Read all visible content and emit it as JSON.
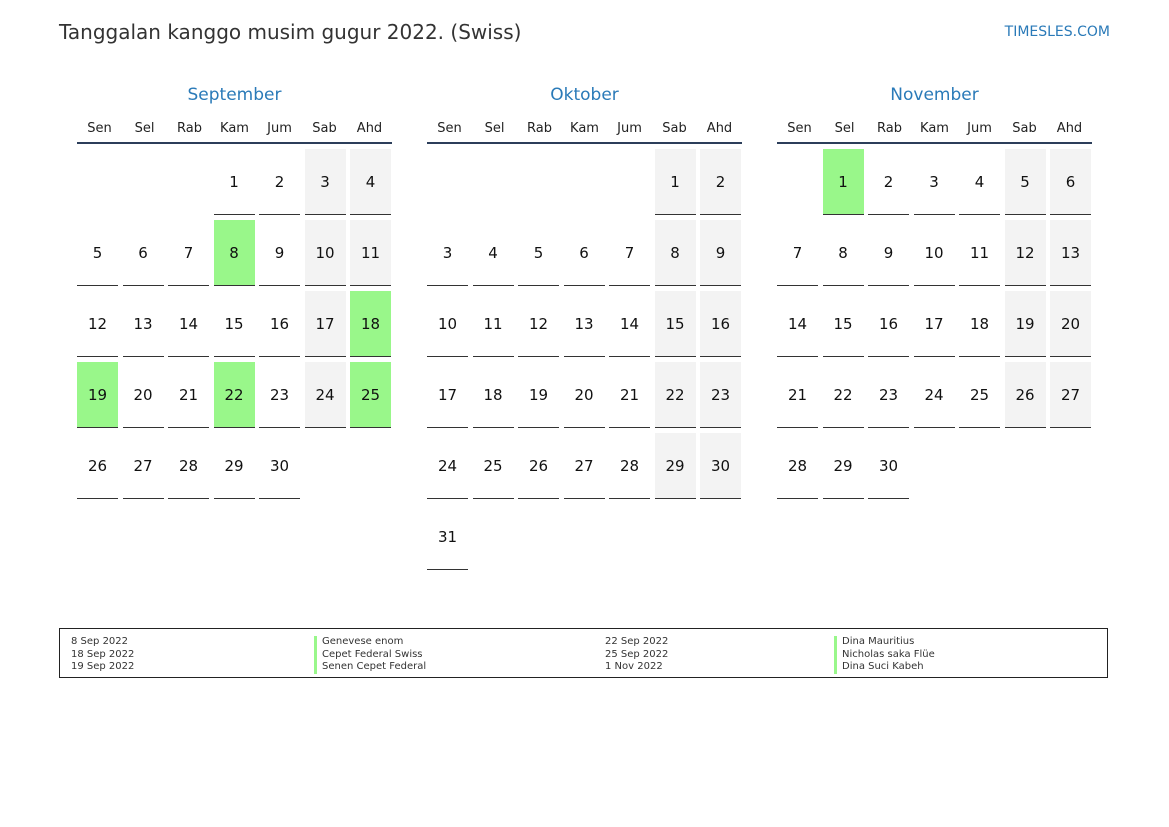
{
  "header": {
    "title": "Tanggalan kanggo musim gugur 2022. (Swiss)",
    "site": "TIMESLES.COM"
  },
  "weekdays": [
    "Sen",
    "Sel",
    "Rab",
    "Kam",
    "Jum",
    "Sab",
    "Ahd"
  ],
  "colors": {
    "accent": "#2a7ab8",
    "holiday": "#99f78a",
    "weekend": "#f3f3f3"
  },
  "months": [
    {
      "name": "September",
      "offset": 3,
      "days": 30,
      "holidays": [
        8,
        18,
        19,
        22,
        25
      ]
    },
    {
      "name": "Oktober",
      "offset": 5,
      "days": 31,
      "holidays": []
    },
    {
      "name": "November",
      "offset": 1,
      "days": 30,
      "holidays": [
        1
      ]
    }
  ],
  "legend": {
    "col1_dates": [
      "8 Sep 2022",
      "18 Sep 2022",
      "19 Sep 2022"
    ],
    "col1_names": [
      "Genevese enom",
      "Cepet Federal Swiss",
      "Senen Cepet Federal"
    ],
    "col2_dates": [
      "22 Sep 2022",
      "25 Sep 2022",
      "1 Nov 2022"
    ],
    "col2_names": [
      "Dina Mauritius",
      "Nicholas saka Flüe",
      "Dina Suci Kabeh"
    ]
  }
}
